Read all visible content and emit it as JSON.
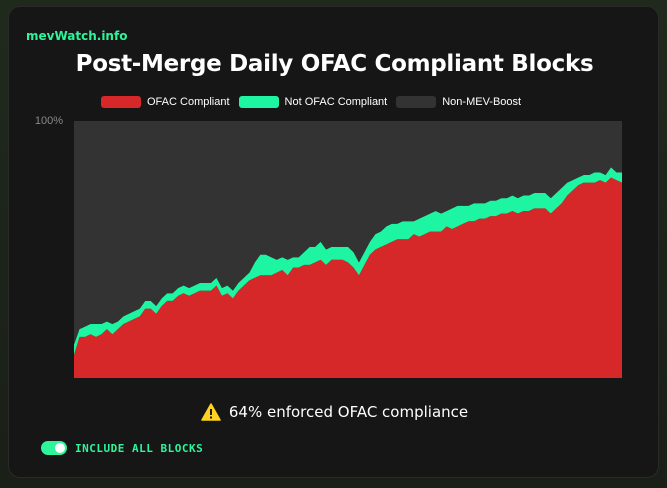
{
  "brand": "mevWatch.info",
  "summary": {
    "text": "64% enforced OFAC compliance",
    "icon": "warning-icon"
  },
  "toggle": {
    "label": "INCLUDE ALL BLOCKS",
    "on": true
  },
  "colors": {
    "ofac": "#d62828",
    "not_ofac": "#1ef5a2",
    "non_mev": "#333333",
    "accent": "#2ef59b"
  },
  "chart_data": {
    "type": "area",
    "stacked": true,
    "title": "Post-Merge Daily OFAC Compliant Blocks",
    "ytick_labels": [
      "100%"
    ],
    "ylim": [
      0,
      100
    ],
    "legend_position": "top",
    "series": [
      {
        "name": "OFAC Compliant",
        "color": "#d62828",
        "values": [
          9,
          16,
          16,
          17,
          16,
          17,
          19,
          17,
          19,
          21,
          22,
          23,
          24,
          27,
          27,
          25,
          28,
          30,
          30,
          32,
          33,
          32,
          33,
          34,
          34,
          34,
          36,
          32,
          33,
          31,
          34,
          36,
          38,
          39,
          40,
          40,
          40,
          41,
          42,
          40,
          43,
          43,
          44,
          44,
          45,
          46,
          44,
          46,
          46,
          46,
          45,
          43,
          40,
          44,
          48,
          50,
          51,
          52,
          53,
          54,
          54,
          54,
          56,
          55,
          56,
          57,
          57,
          57,
          59,
          58,
          59,
          60,
          61,
          61,
          62,
          62,
          63,
          63,
          64,
          64,
          65,
          64,
          65,
          65,
          66,
          66,
          66,
          64,
          66,
          68,
          71,
          73,
          75,
          76,
          76,
          76,
          77,
          76,
          78,
          77,
          76
        ]
      },
      {
        "name": "Not OFAC Compliant",
        "color": "#1ef5a2",
        "values": [
          4,
          3,
          4,
          4,
          5,
          4,
          3,
          4,
          3,
          3,
          3,
          3,
          3,
          3,
          3,
          3,
          3,
          3,
          3,
          3,
          3,
          3,
          3,
          3,
          3,
          3,
          3,
          3,
          3,
          3,
          3,
          3,
          3,
          6,
          8,
          8,
          7,
          5,
          5,
          6,
          4,
          4,
          5,
          7,
          6,
          7,
          6,
          5,
          5,
          5,
          6,
          6,
          5,
          5,
          5,
          6,
          6,
          7,
          7,
          6,
          7,
          7,
          5,
          7,
          7,
          7,
          8,
          7,
          6,
          8,
          8,
          7,
          6,
          7,
          6,
          6,
          6,
          6,
          6,
          6,
          6,
          6,
          6,
          6,
          6,
          6,
          6,
          6,
          6,
          6,
          5,
          4,
          3,
          3,
          3,
          4,
          3,
          3,
          4,
          3,
          4
        ]
      },
      {
        "name": "Non-MEV-Boost",
        "color": "#333333",
        "values": [
          87,
          81,
          80,
          79,
          79,
          79,
          78,
          79,
          78,
          76,
          75,
          74,
          73,
          70,
          70,
          72,
          69,
          67,
          67,
          65,
          64,
          65,
          64,
          63,
          63,
          63,
          61,
          65,
          64,
          66,
          63,
          61,
          59,
          55,
          52,
          52,
          53,
          54,
          53,
          54,
          53,
          53,
          51,
          49,
          49,
          47,
          50,
          49,
          49,
          49,
          49,
          51,
          55,
          51,
          47,
          44,
          43,
          41,
          40,
          40,
          39,
          39,
          39,
          38,
          37,
          36,
          35,
          36,
          35,
          34,
          33,
          33,
          33,
          32,
          32,
          32,
          31,
          31,
          30,
          30,
          29,
          30,
          29,
          29,
          28,
          28,
          28,
          30,
          28,
          26,
          24,
          23,
          22,
          21,
          21,
          20,
          20,
          21,
          18,
          20,
          20
        ]
      }
    ]
  }
}
